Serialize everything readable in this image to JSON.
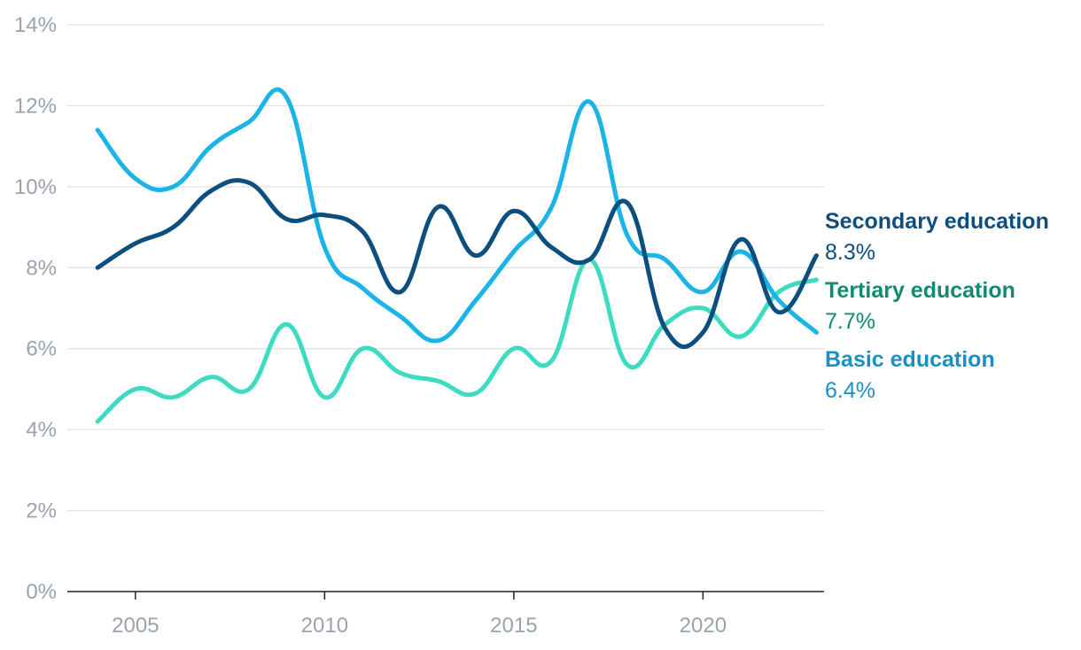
{
  "chart_data": {
    "type": "line",
    "title": "",
    "xlabel": "",
    "ylabel": "",
    "ylim": [
      0,
      14
    ],
    "xlim": [
      2003.2,
      2023.2
    ],
    "y_ticks": [
      0,
      2,
      4,
      6,
      8,
      10,
      12,
      14
    ],
    "y_tick_labels": [
      "0%",
      "2%",
      "4%",
      "6%",
      "8%",
      "10%",
      "12%",
      "14%"
    ],
    "x_ticks": [
      2005,
      2010,
      2015,
      2020
    ],
    "x_tick_labels": [
      "2005",
      "2010",
      "2015",
      "2020"
    ],
    "grid": "horizontal",
    "legend": "end-of-line labels (right)",
    "x": [
      2004,
      2005,
      2006,
      2007,
      2008,
      2009,
      2010,
      2011,
      2012,
      2013,
      2014,
      2015,
      2016,
      2017,
      2018,
      2019,
      2020,
      2021,
      2022,
      2023
    ],
    "series": [
      {
        "name": "Basic education",
        "end_label": "6.4%",
        "color": "#1bb4e6",
        "label_color": "#1a8fc4",
        "values": [
          11.4,
          10.2,
          10.0,
          11.0,
          11.6,
          12.2,
          8.5,
          7.5,
          6.8,
          6.2,
          7.2,
          8.4,
          9.5,
          12.1,
          8.8,
          8.2,
          7.4,
          8.4,
          7.2,
          6.4
        ]
      },
      {
        "name": "Secondary education",
        "end_label": "8.3%",
        "color": "#0c4f7f",
        "label_color": "#0c4f7f",
        "values": [
          8.0,
          8.6,
          9.0,
          9.9,
          10.1,
          9.2,
          9.3,
          8.9,
          7.4,
          9.5,
          8.3,
          9.4,
          8.5,
          8.2,
          9.6,
          6.5,
          6.4,
          8.7,
          6.9,
          8.3
        ]
      },
      {
        "name": "Tertiary education",
        "end_label": "7.7%",
        "color": "#3ddcc0",
        "label_color": "#0f8a73",
        "values": [
          4.2,
          5.0,
          4.8,
          5.3,
          5.0,
          6.6,
          4.8,
          6.0,
          5.4,
          5.2,
          4.9,
          6.0,
          5.7,
          8.2,
          5.6,
          6.6,
          7.0,
          6.3,
          7.4,
          7.7
        ]
      }
    ]
  }
}
